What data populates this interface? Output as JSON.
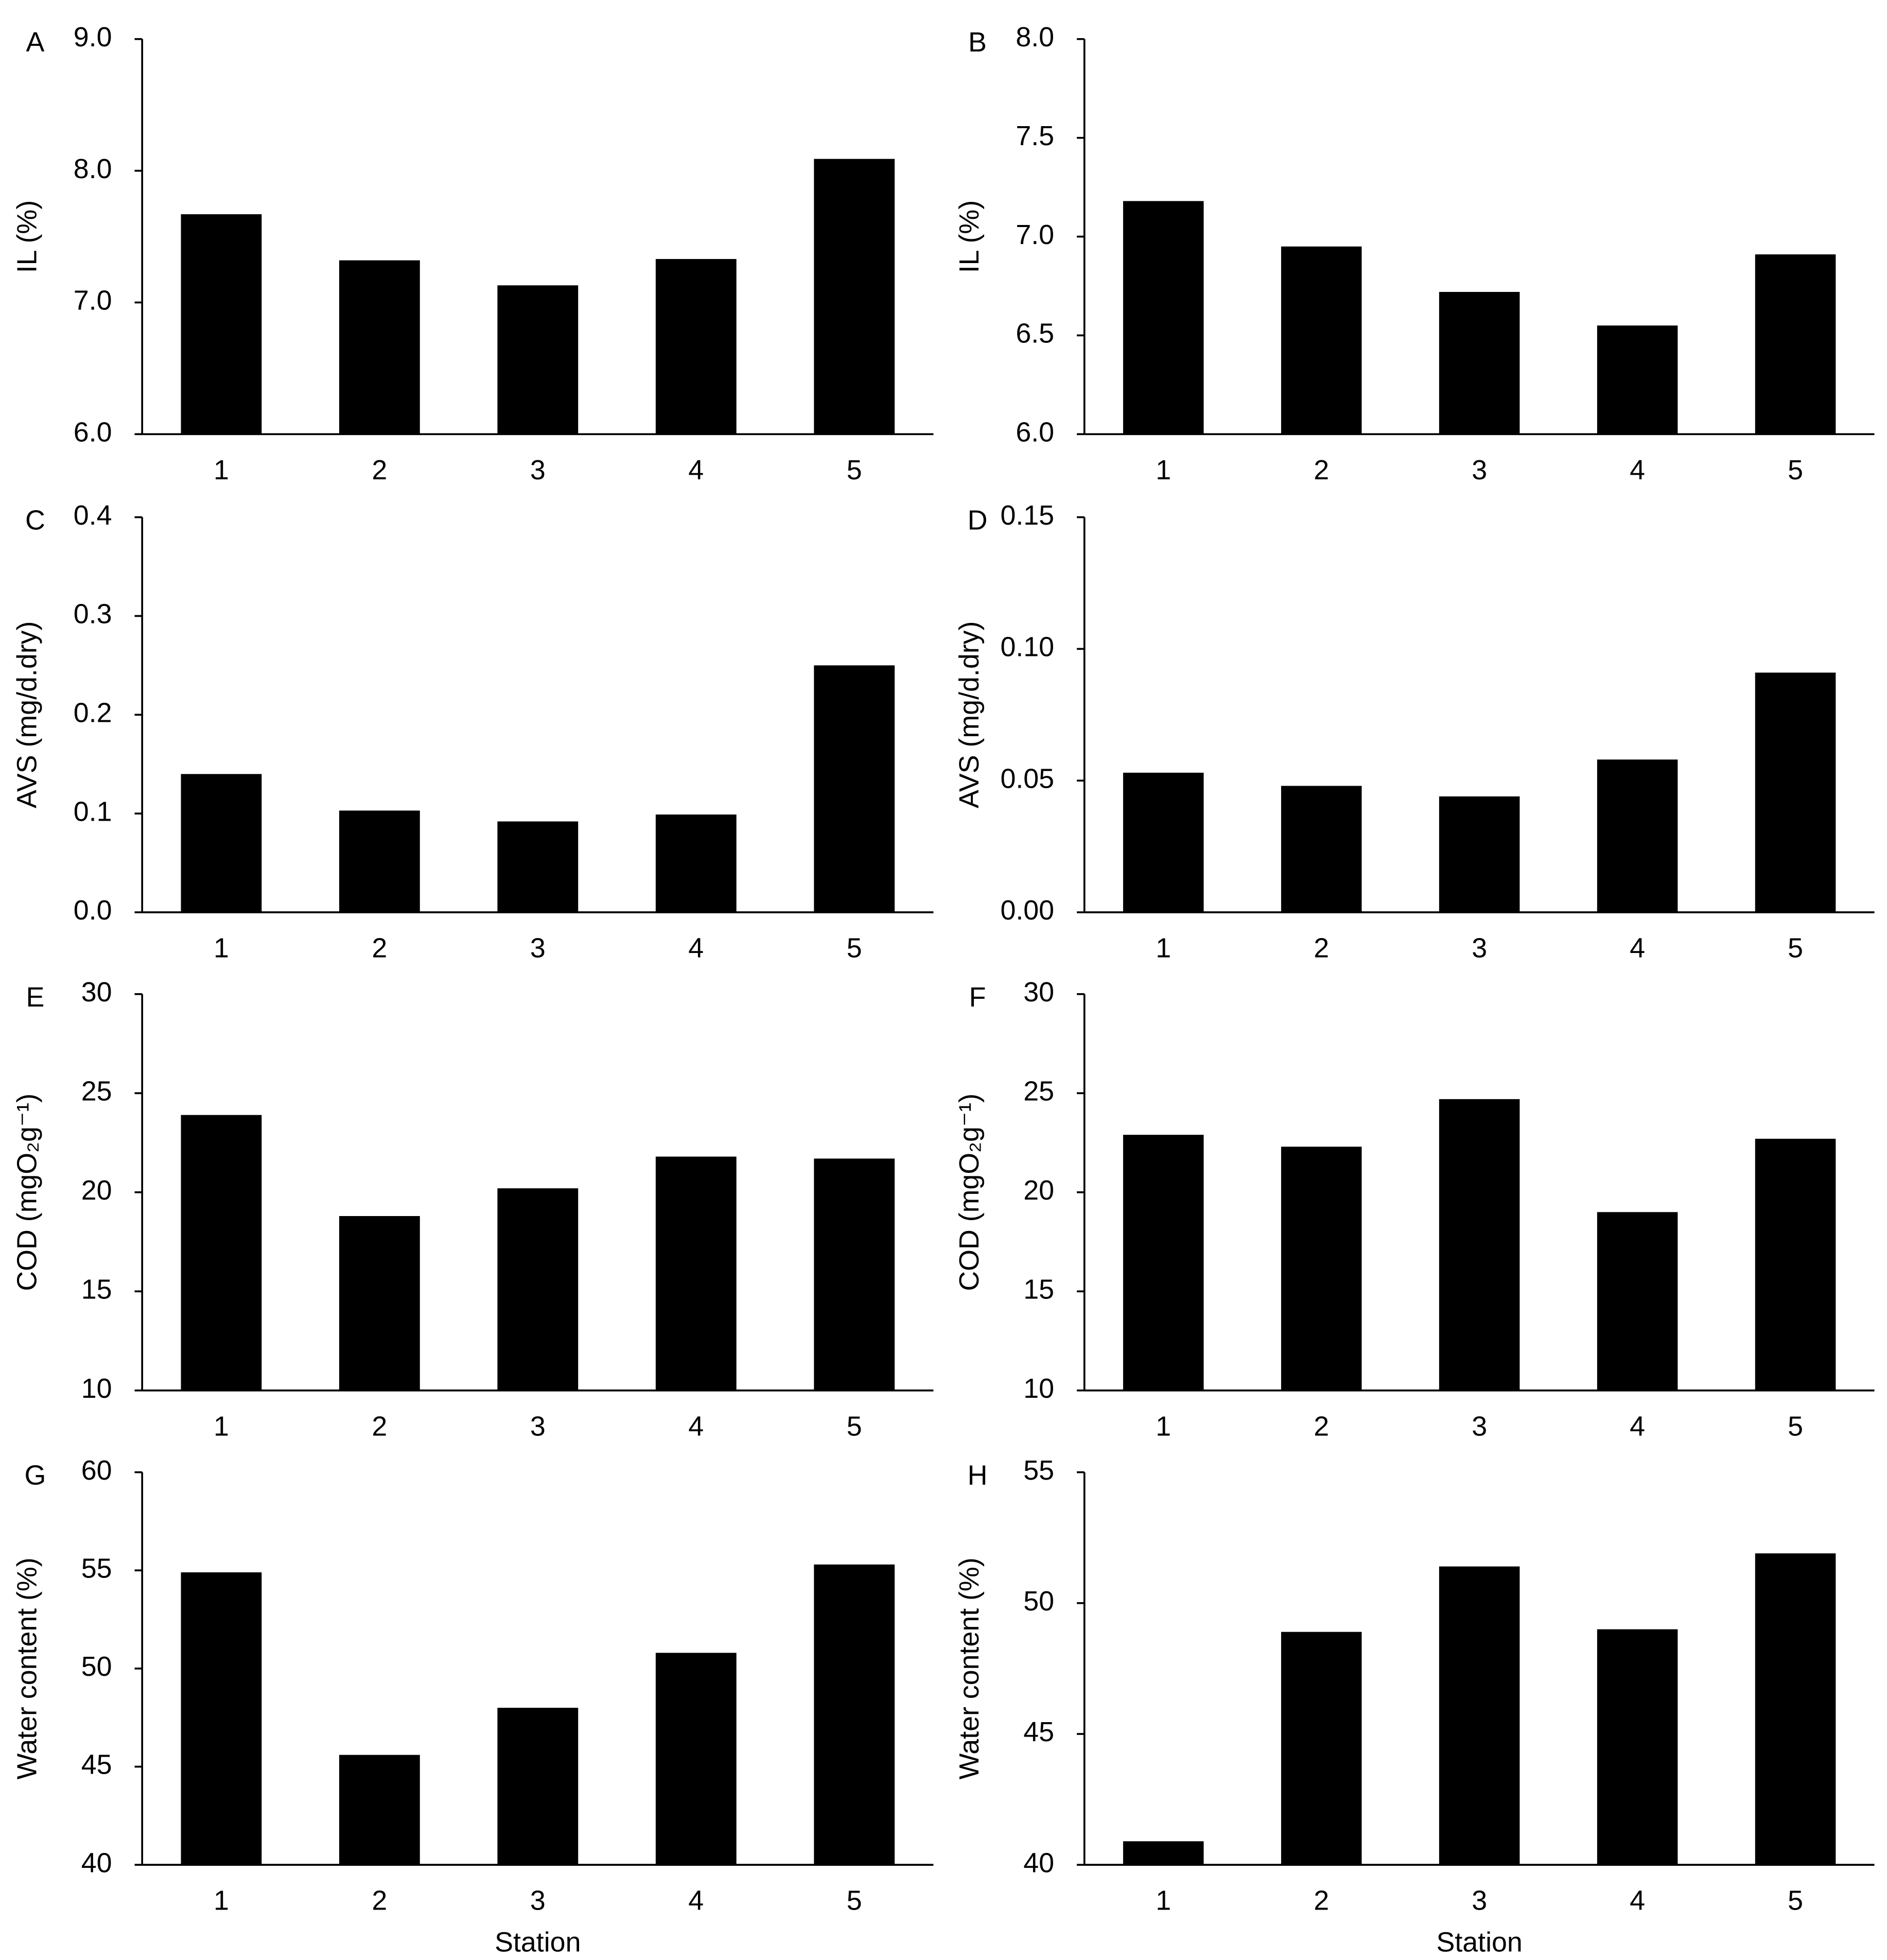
{
  "chart_data": [
    {
      "type": "bar",
      "panel_label": "A",
      "ylabel": "IL (%)",
      "categories": [
        "1",
        "2",
        "3",
        "4",
        "5"
      ],
      "values": [
        7.67,
        7.32,
        7.13,
        7.33,
        8.09
      ],
      "color": "#000000",
      "ylim": [
        6,
        9
      ],
      "yticks": [
        {
          "value": 6,
          "label": "6.0"
        },
        {
          "value": 7,
          "label": "7.0"
        },
        {
          "value": 8,
          "label": "8.0"
        },
        {
          "value": 9,
          "label": "9.0"
        }
      ]
    },
    {
      "type": "bar",
      "panel_label": "B",
      "ylabel": "IL (%)",
      "categories": [
        "1",
        "2",
        "3",
        "4",
        "5"
      ],
      "values": [
        7.18,
        6.95,
        6.72,
        6.55,
        6.91
      ],
      "color": "#000000",
      "ylim": [
        6,
        8
      ],
      "yticks": [
        {
          "value": 6,
          "label": "6.0"
        },
        {
          "value": 6.5,
          "label": "6.5"
        },
        {
          "value": 7,
          "label": "7.0"
        },
        {
          "value": 7.5,
          "label": "7.5"
        },
        {
          "value": 8,
          "label": "8.0"
        }
      ]
    },
    {
      "type": "bar",
      "panel_label": "C",
      "ylabel": "AVS (mg/d.dry)",
      "categories": [
        "1",
        "2",
        "3",
        "4",
        "5"
      ],
      "values": [
        0.14,
        0.103,
        0.092,
        0.099,
        0.25
      ],
      "color": "#000000",
      "ylim": [
        0,
        0.4
      ],
      "yticks": [
        {
          "value": 0,
          "label": "0.0"
        },
        0.1,
        0.2,
        0.3,
        0.4
      ]
    },
    {
      "type": "bar",
      "panel_label": "D",
      "ylabel": "AVS (mg/d.dry)",
      "categories": [
        "1",
        "2",
        "3",
        "4",
        "5"
      ],
      "values": [
        0.053,
        0.048,
        0.044,
        0.058,
        0.091
      ],
      "color": "#000000",
      "ylim": [
        0,
        0.15
      ],
      "yticks": [
        {
          "value": 0,
          "label": "0.00"
        },
        0.05,
        {
          "value": 0.1,
          "label": "0.10"
        },
        0.15
      ]
    },
    {
      "type": "bar",
      "panel_label": "E",
      "ylabel": "COD (mgO₂g⁻¹)",
      "categories": [
        "1",
        "2",
        "3",
        "4",
        "5"
      ],
      "values": [
        23.9,
        18.8,
        20.2,
        21.8,
        21.7
      ],
      "color": "#000000",
      "ylim": [
        10,
        30
      ],
      "yticks": [
        10,
        15,
        20,
        25,
        30
      ]
    },
    {
      "type": "bar",
      "panel_label": "F",
      "ylabel": "COD (mgO₂g⁻¹)",
      "categories": [
        "1",
        "2",
        "3",
        "4",
        "5"
      ],
      "values": [
        22.9,
        22.3,
        24.7,
        19.0,
        22.7
      ],
      "color": "#000000",
      "ylim": [
        10,
        30
      ],
      "yticks": [
        10,
        15,
        20,
        25,
        30
      ]
    },
    {
      "type": "bar",
      "panel_label": "G",
      "ylabel": "Water content (%)",
      "xlabel": "Station",
      "categories": [
        "1",
        "2",
        "3",
        "4",
        "5"
      ],
      "values": [
        54.9,
        45.6,
        48.0,
        50.8,
        55.3
      ],
      "color": "#000000",
      "ylim": [
        40,
        60
      ],
      "yticks": [
        40,
        45,
        50,
        55,
        60
      ]
    },
    {
      "type": "bar",
      "panel_label": "H",
      "ylabel": "Water content (%)",
      "xlabel": "Station",
      "categories": [
        "1",
        "2",
        "3",
        "4",
        "5"
      ],
      "values": [
        40.9,
        48.9,
        51.4,
        49.0,
        51.9
      ],
      "color": "#000000",
      "ylim": [
        40,
        55
      ],
      "yticks": [
        40,
        45,
        50,
        55
      ]
    }
  ]
}
